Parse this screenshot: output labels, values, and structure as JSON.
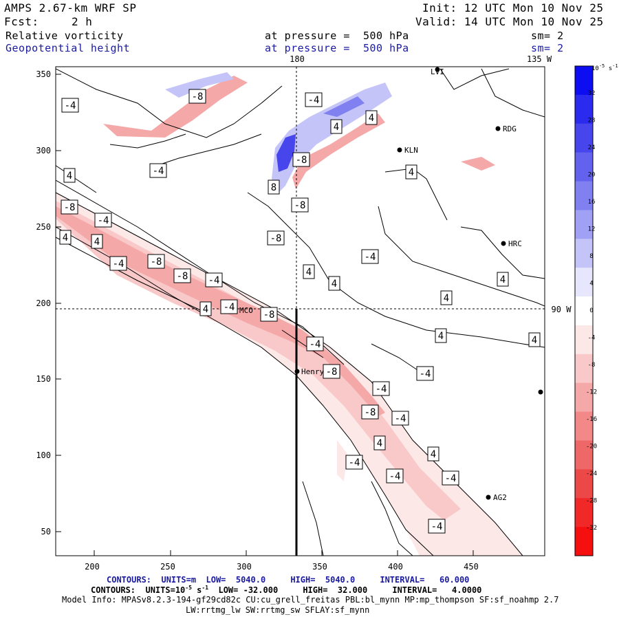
{
  "header": {
    "title": "AMPS 2.67-km WRF SP",
    "init": "Init: 12 UTC Mon 10 Nov 25",
    "fcst_label": "Fcst:",
    "fcst_value": "2 h",
    "valid": "Valid: 14 UTC Mon 10 Nov 25",
    "field1": "Relative vorticity",
    "field1_level": "at pressure =  500 hPa",
    "field1_sm": "sm= 2",
    "field2": "Geopotential height",
    "field2_level": "at pressure =  500 hPa",
    "field2_sm": "sm= 2"
  },
  "map": {
    "meridian_label": "180",
    "meridian2_label": "135 W",
    "parallel_label": "90 W",
    "x_ticks": [
      "200",
      "250",
      "300",
      "350",
      "400",
      "450"
    ],
    "y_ticks": [
      "350",
      "300",
      "250",
      "200",
      "150",
      "100",
      "50"
    ],
    "stations": [
      "LVI",
      "RDG",
      "KLN",
      "HRC",
      "MCO",
      "Henry",
      "AG2"
    ],
    "contour_labels": [
      "-8",
      "-4",
      "-4",
      "4",
      "4",
      "-8",
      "8",
      "-8",
      "-4",
      "4",
      "4",
      "-8",
      "-4",
      "4",
      "4",
      "-8",
      "-4",
      "-8",
      "-4",
      "4",
      "4",
      "4",
      "4",
      "4",
      "4",
      "4",
      "-8",
      "-8",
      "-4",
      "-4",
      "-4",
      "-8",
      "-4",
      "-4",
      "-8",
      "-4",
      "4",
      "4",
      "-4",
      "-4"
    ]
  },
  "colorbar": {
    "unit": "10",
    "unit_exp": "-5",
    "unit_suffix": "s",
    "unit_suffix_exp": "-1",
    "labels": [
      "32",
      "28",
      "24",
      "20",
      "16",
      "12",
      "8",
      "4",
      "0",
      "-4",
      "-8",
      "-12",
      "-16",
      "-20",
      "-24",
      "-28",
      "-32"
    ],
    "colors": [
      "#0d0df2",
      "#2b2bef",
      "#4646ec",
      "#6262ee",
      "#8080f0",
      "#a0a0f4",
      "#c4c4f8",
      "#e6e6fc",
      "#ffffff",
      "#fde8e8",
      "#f9c8c8",
      "#f5a8a8",
      "#f28888",
      "#ef6868",
      "#ec4848",
      "#f02828",
      "#f50f0f"
    ]
  },
  "footer": {
    "line1_prefix": "CONTOURS:  UNITS=m  LOW=  5040.0",
    "line1_high": "HIGH=  5040.0",
    "line1_interval": "INTERVAL=   60.000",
    "line2_prefix": "CONTOURS:  UNITS=10",
    "line2_exp": "-5",
    "line2_s": "s",
    "line2_sexp": "-1",
    "line2_low": "LOW= -32.000",
    "line2_high": "HIGH=  32.000",
    "line2_interval": "INTERVAL=   4.0000",
    "line3": "Model Info: MPASv8.2.3-194-gf29cd82c CU:cu_grell_freitas PBL:bl_mynn MP:mp_thompson SF:sf_noahmp 2.7",
    "line4": "LW:rrtmg_lw SW:rrtmg_sw SFLAY:sf_mynn"
  }
}
